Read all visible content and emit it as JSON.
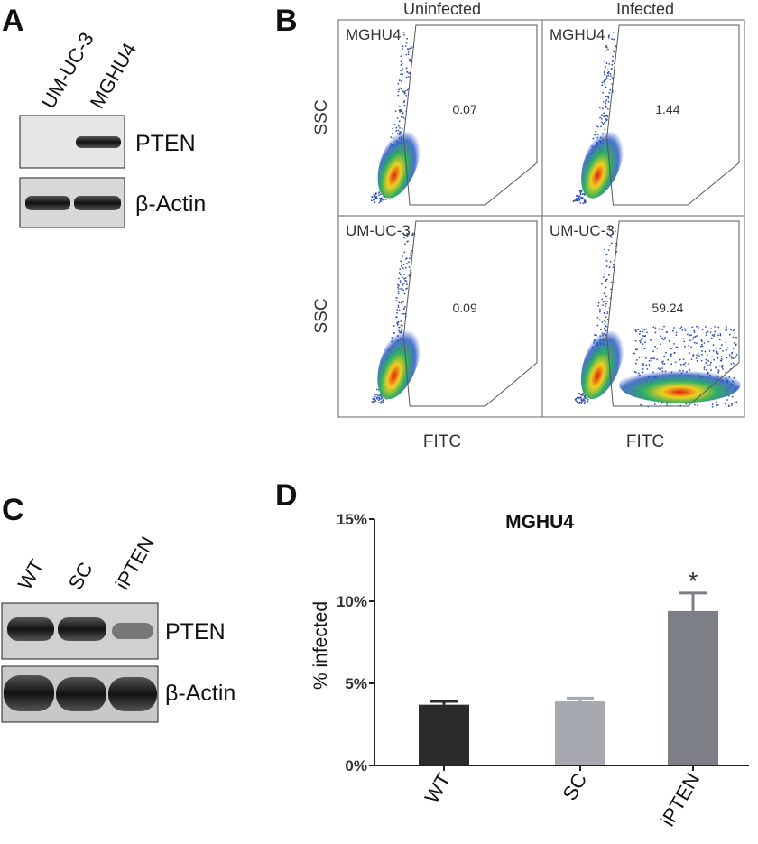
{
  "panel_a": {
    "label": "A",
    "lanes": [
      "UM-UC-3",
      "MGHU4"
    ],
    "bands": [
      "PTEN",
      "β-Actin"
    ]
  },
  "panel_b": {
    "label": "B",
    "columns": [
      "Uninfected",
      "Infected"
    ],
    "plots": [
      {
        "sample": "MGHU4",
        "value": "0.07"
      },
      {
        "sample": "MGHU4",
        "value": "1.44"
      },
      {
        "sample": "UM-UC-3",
        "value": "0.09"
      },
      {
        "sample": "UM-UC-3",
        "value": "59.24"
      }
    ],
    "y_label": "SSC",
    "x_label": "FITC"
  },
  "panel_c": {
    "label": "C",
    "lanes": [
      "WT",
      "SC",
      "iPTEN"
    ],
    "bands": [
      "PTEN",
      "β-Actin"
    ]
  },
  "panel_d_label": "D",
  "chart_data": {
    "type": "bar",
    "title": "MGHU4",
    "y_label": "% infected",
    "categories": [
      "WT",
      "SC",
      "iPTEN"
    ],
    "values": [
      3.7,
      3.9,
      9.4
    ],
    "errors": [
      0.2,
      0.2,
      1.1
    ],
    "colors": [
      "#2b2b2d",
      "#a7a9b0",
      "#7d7f87"
    ],
    "ylim": [
      0,
      15
    ],
    "yticks": [
      {
        "value": 0,
        "label": "0%"
      },
      {
        "value": 5,
        "label": "5%"
      },
      {
        "value": 10,
        "label": "10%"
      },
      {
        "value": 15,
        "label": "15%"
      }
    ],
    "annotations": [
      {
        "category": 2,
        "text": "*"
      }
    ]
  }
}
